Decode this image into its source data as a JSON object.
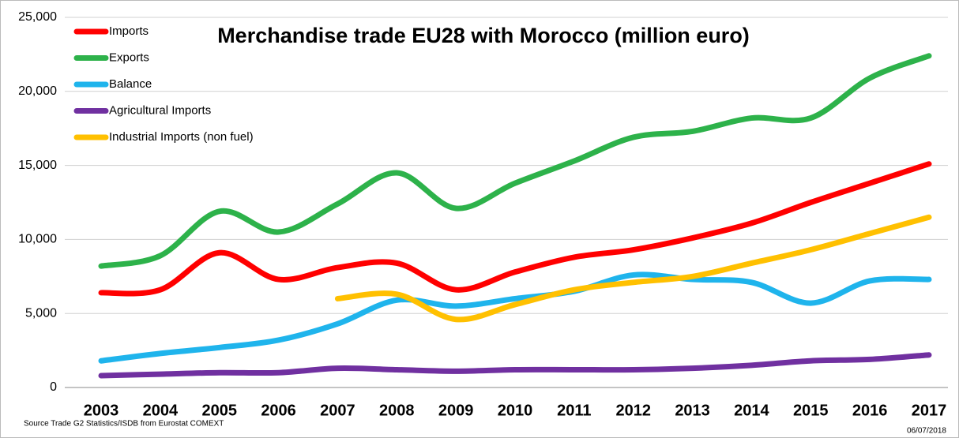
{
  "chart_data": {
    "type": "line",
    "title": "Merchandise trade EU28 with Morocco (million euro)",
    "source": "Source Trade G2 Statistics/ISDB from Eurostat COMEXT",
    "date": "06/07/2018",
    "categories": [
      "2003",
      "2004",
      "2005",
      "2006",
      "2007",
      "2008",
      "2009",
      "2010",
      "2011",
      "2012",
      "2013",
      "2014",
      "2015",
      "2016",
      "2017"
    ],
    "series": [
      {
        "name": "Imports",
        "color": "#ff0000",
        "values": [
          6400,
          6600,
          9100,
          7300,
          8100,
          8400,
          6600,
          7800,
          8800,
          9300,
          10100,
          11100,
          12500,
          13800,
          15100
        ]
      },
      {
        "name": "Exports",
        "color": "#2db24a",
        "values": [
          8200,
          8900,
          11900,
          10500,
          12400,
          14500,
          12100,
          13800,
          15300,
          16900,
          17300,
          18200,
          18200,
          20900,
          22400
        ]
      },
      {
        "name": "Balance",
        "color": "#1fb4ec",
        "values": [
          1800,
          2300,
          2700,
          3200,
          4300,
          5900,
          5500,
          6000,
          6500,
          7600,
          7300,
          7100,
          5700,
          7200,
          7300
        ]
      },
      {
        "name": "Agricultural Imports",
        "color": "#7030a0",
        "values": [
          800,
          900,
          1000,
          1000,
          1300,
          1200,
          1100,
          1200,
          1200,
          1200,
          1300,
          1500,
          1800,
          1900,
          2200
        ]
      },
      {
        "name": "Industrial Imports (non fuel)",
        "color": "#ffc000",
        "values": [
          null,
          null,
          null,
          null,
          6000,
          6300,
          4600,
          5600,
          6600,
          7100,
          7500,
          8400,
          9300,
          10400,
          11500
        ]
      }
    ],
    "ylim": [
      0,
      25000
    ],
    "yticks": [
      0,
      {
        "value": 5000,
        "label": "5,000"
      },
      {
        "value": 10000,
        "label": "10,000"
      },
      {
        "value": 15000,
        "label": "15,000"
      },
      {
        "value": 20000,
        "label": "20,000"
      },
      {
        "value": 25000,
        "label": "25,000"
      }
    ],
    "grid": true,
    "legend": "top-left"
  }
}
